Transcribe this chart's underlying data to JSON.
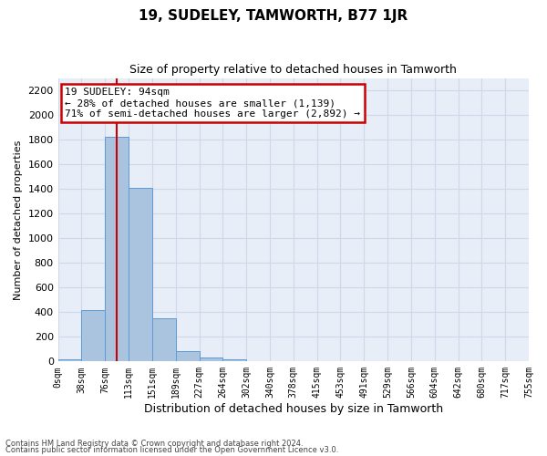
{
  "title": "19, SUDELEY, TAMWORTH, B77 1JR",
  "subtitle": "Size of property relative to detached houses in Tamworth",
  "xlabel": "Distribution of detached houses by size in Tamworth",
  "ylabel": "Number of detached properties",
  "bar_values": [
    15,
    420,
    1820,
    1410,
    350,
    85,
    35,
    20,
    0,
    0,
    0,
    0,
    0,
    0,
    0,
    0,
    0,
    0,
    0,
    0
  ],
  "bin_labels": [
    "0sqm",
    "38sqm",
    "76sqm",
    "113sqm",
    "151sqm",
    "189sqm",
    "227sqm",
    "264sqm",
    "302sqm",
    "340sqm",
    "378sqm",
    "415sqm",
    "453sqm",
    "491sqm",
    "529sqm",
    "566sqm",
    "604sqm",
    "642sqm",
    "680sqm",
    "717sqm",
    "755sqm"
  ],
  "bar_color": "#aac4e0",
  "bar_edge_color": "#5b9bd5",
  "grid_color": "#d0d8e8",
  "background_color": "#e8eef8",
  "annotation_text": "19 SUDELEY: 94sqm\n← 28% of detached houses are smaller (1,139)\n71% of semi-detached houses are larger (2,892) →",
  "annotation_box_color": "#ffffff",
  "annotation_box_edge_color": "#cc0000",
  "property_line_color": "#cc0000",
  "ylim": [
    0,
    2300
  ],
  "yticks": [
    0,
    200,
    400,
    600,
    800,
    1000,
    1200,
    1400,
    1600,
    1800,
    2000,
    2200
  ],
  "footnote1": "Contains HM Land Registry data © Crown copyright and database right 2024.",
  "footnote2": "Contains public sector information licensed under the Open Government Licence v3.0."
}
